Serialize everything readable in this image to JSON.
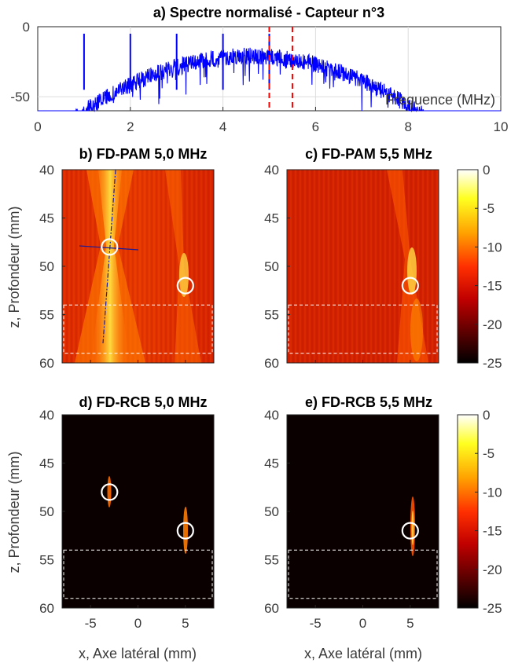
{
  "colors": {
    "spectrum_line": "#0000ff",
    "marker_line": "#ff0000",
    "circle": "#ffffff",
    "roi_box": "#ffffff",
    "diag_line": "#1a1a99"
  },
  "colorbar": {
    "colormap": "hot",
    "ticks": [
      "0",
      "-5",
      "-10",
      "-15",
      "-20",
      "-25"
    ],
    "range": [
      -25,
      0
    ]
  },
  "chart_data": [
    {
      "id": "a",
      "type": "line",
      "title": "a) Spectre normalisé - Capteur n°3",
      "xlabel": "Frequence (MHz)",
      "ylabel": "",
      "xlim": [
        0,
        10
      ],
      "ylim": [
        -60,
        0
      ],
      "xticks": [
        "0",
        "2",
        "4",
        "6",
        "8",
        "10"
      ],
      "yticks": [
        "0",
        "-50"
      ],
      "grid": true,
      "peaks_mhz": [
        1,
        2,
        3,
        4,
        5
      ],
      "markers_mhz": [
        5.0,
        5.5
      ]
    },
    {
      "id": "b",
      "type": "heatmap",
      "title": "b) FD-PAM 5,0 MHz",
      "xlim": [
        -8,
        8
      ],
      "ylim": [
        40,
        60
      ],
      "circles_mm": [
        [
          -3,
          48
        ],
        [
          5,
          52
        ]
      ],
      "roi_mm": [
        -8,
        54,
        8,
        59
      ]
    },
    {
      "id": "c",
      "type": "heatmap",
      "title": "c) FD-PAM 5,5 MHz",
      "xlim": [
        -8,
        8
      ],
      "ylim": [
        40,
        60
      ],
      "circles_mm": [
        [
          5,
          52
        ]
      ],
      "roi_mm": [
        -8,
        54,
        8,
        59
      ]
    },
    {
      "id": "d",
      "type": "heatmap",
      "title": "d) FD-RCB 5,0 MHz",
      "xlim": [
        -8,
        8
      ],
      "ylim": [
        40,
        60
      ],
      "circles_mm": [
        [
          -3,
          48
        ],
        [
          5,
          52
        ]
      ],
      "roi_mm": [
        -8,
        54,
        8,
        59
      ]
    },
    {
      "id": "e",
      "type": "heatmap",
      "title": "e) FD-RCB 5,5 MHz",
      "xlim": [
        -8,
        8
      ],
      "ylim": [
        40,
        60
      ],
      "circles_mm": [
        [
          5,
          52
        ]
      ],
      "roi_mm": [
        -8,
        54,
        8,
        59
      ]
    }
  ],
  "axes": {
    "depth_ticks": [
      "40",
      "45",
      "50",
      "55",
      "60"
    ],
    "lateral_ticks": [
      "-5",
      "0",
      "5"
    ],
    "ylabel": "z, Profondeur (mm)",
    "xlabel": "x, Axe latéral (mm)"
  }
}
